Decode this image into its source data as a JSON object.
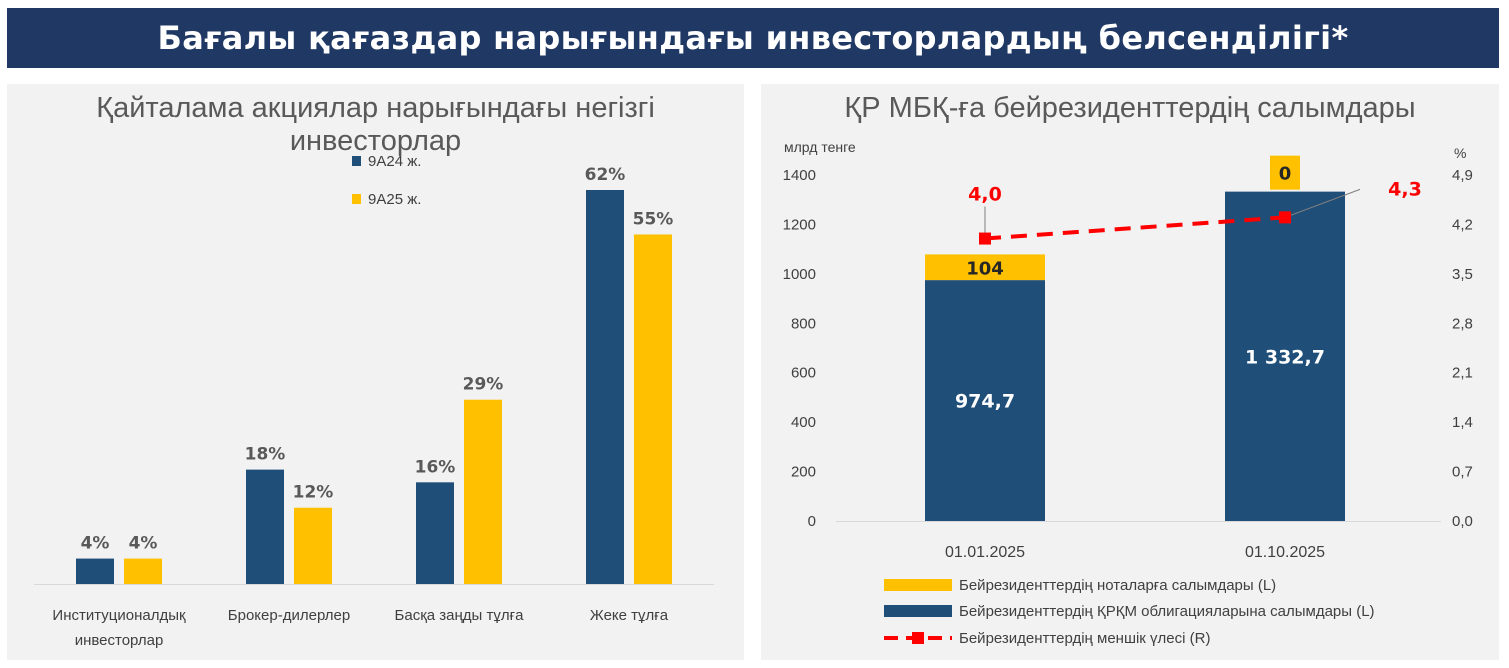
{
  "banner": {
    "title": "Бағалы қағаздар нарығындағы инвесторлардың белсенділігі*"
  },
  "colors": {
    "navy": "#1f4e79",
    "gold": "#ffc000",
    "red": "#ff0000",
    "banner": "#1f3864",
    "panel": "#f2f2f2",
    "label": "#595959"
  },
  "chart_data": [
    {
      "type": "bar",
      "title": "Қайталама акциялар нарығындағы негізгі инвесторлар",
      "categories": [
        "Институционалдық инвесторлар",
        "Брокер-дилерлер",
        "Басқа заңды тұлға",
        "Жеке тұлға"
      ],
      "series": [
        {
          "name": "9А24 ж.",
          "values": [
            4,
            18,
            16,
            62
          ],
          "labels": [
            "4%",
            "18%",
            "16%",
            "62%"
          ]
        },
        {
          "name": "9А25 ж.",
          "values": [
            4,
            12,
            29,
            55
          ],
          "labels": [
            "4%",
            "12%",
            "29%",
            "55%"
          ]
        }
      ],
      "ylim": [
        0,
        62
      ],
      "legend": "top"
    },
    {
      "type": "bar",
      "stacked": true,
      "title": "ҚР МБҚ-ға бейрезиденттердің салымдары",
      "ylabel_left": "млрд тенге",
      "ylabel_right": "%",
      "categories": [
        "01.01.2025",
        "01.10.2025"
      ],
      "yticks_left": [
        "0",
        "200",
        "400",
        "600",
        "800",
        "1000",
        "1200",
        "1400"
      ],
      "yticks_right": [
        "0,0",
        "0,7",
        "1,4",
        "2,1",
        "2,8",
        "3,5",
        "4,2",
        "4,9"
      ],
      "ylim_left": [
        0,
        1400
      ],
      "ylim_right": [
        0,
        4.9
      ],
      "series": [
        {
          "name": "Бейрезиденттердің ҚРҚМ облигацияларына салымдары (L)",
          "values": [
            974.7,
            1332.7
          ],
          "labels": [
            "974,7",
            "1 332,7"
          ]
        },
        {
          "name": "Бейрезиденттердің ноталарға салымдары (L)",
          "values": [
            104,
            0
          ],
          "labels": [
            "104",
            "0"
          ]
        },
        {
          "name": "Бейрезиденттердің меншік үлесі (R)",
          "type": "line",
          "axis": "right",
          "values": [
            4.0,
            4.3
          ],
          "labels": [
            "4,0",
            "4,3"
          ]
        }
      ],
      "legend": "bottom"
    }
  ]
}
